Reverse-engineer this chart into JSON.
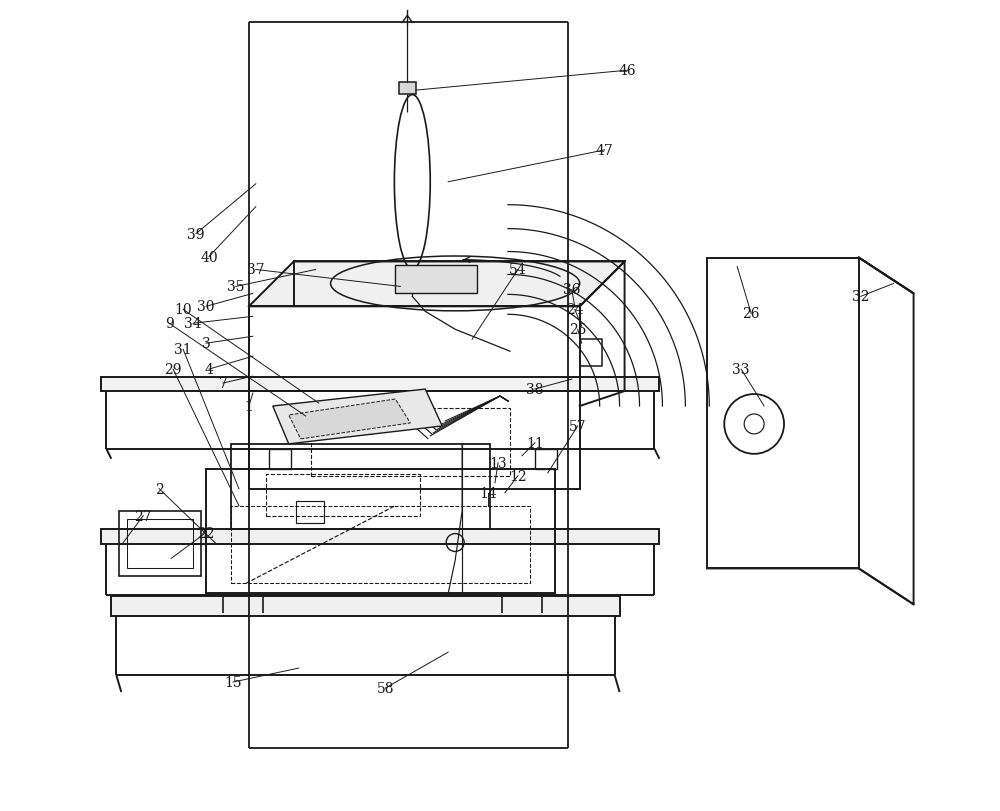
{
  "bg": "#ffffff",
  "lc": "#1a1a1a",
  "fw": 10.0,
  "fh": 8.12,
  "lw": 1.3,
  "lwa": 0.7,
  "fs": 10
}
